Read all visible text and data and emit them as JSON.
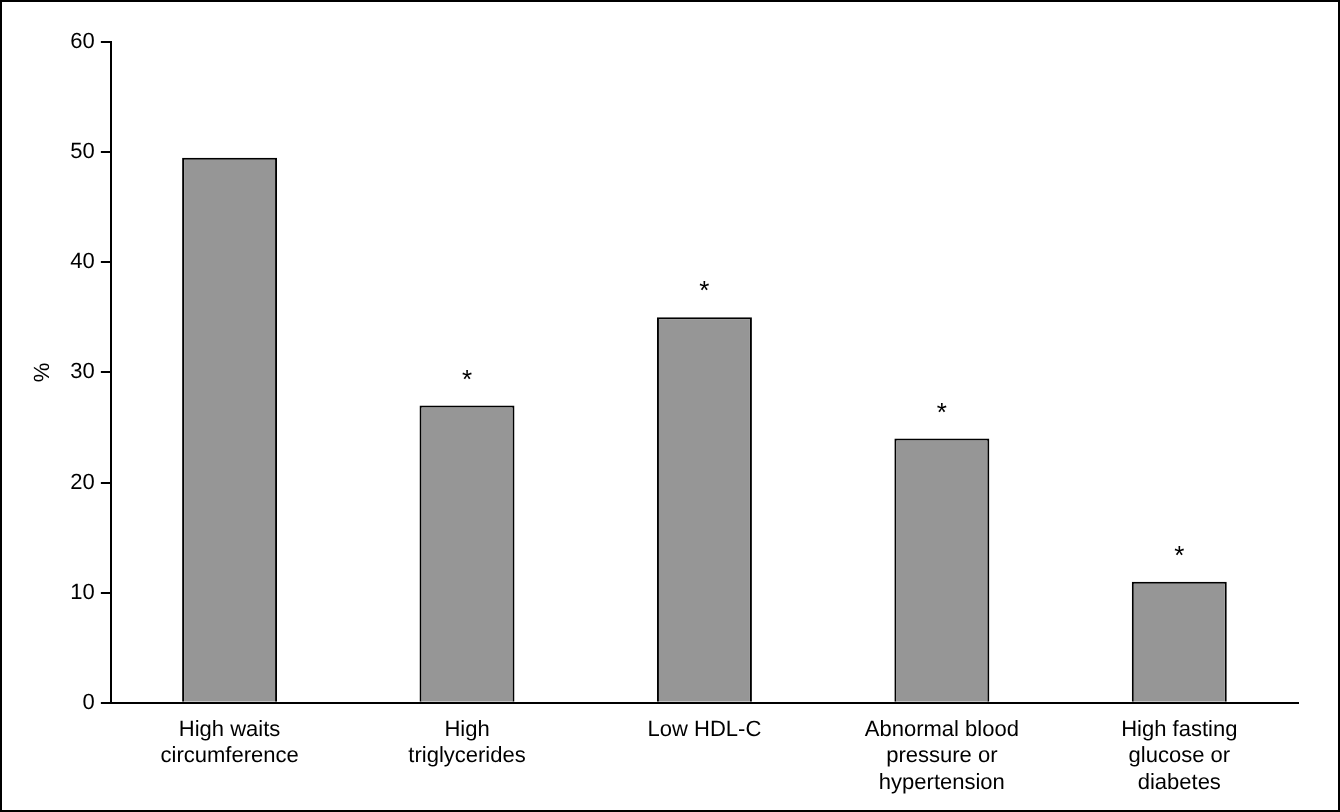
{
  "chart_data": {
    "type": "bar",
    "ylabel": "%",
    "categories": [
      "High waits circumference",
      "High triglycerides",
      "Low HDL-C",
      "Abnormal blood pressure or hypertension",
      "High fasting glucose or diabetes"
    ],
    "values": [
      49.5,
      27,
      35,
      24,
      11
    ],
    "color": "#969696",
    "ylim": [
      0,
      60
    ],
    "yticks": [
      0,
      10,
      20,
      30,
      40,
      50,
      60
    ],
    "grid": false,
    "legend": false,
    "annotations": [
      {
        "text": "*",
        "x": "High triglycerides",
        "y": 27
      },
      {
        "text": "*",
        "x": "Low HDL-C",
        "y": 35
      },
      {
        "text": "*",
        "x": "Abnormal blood pressure or hypertension",
        "y": 24
      },
      {
        "text": "*",
        "x": "High fasting glucose or diabetes",
        "y": 11
      }
    ]
  }
}
